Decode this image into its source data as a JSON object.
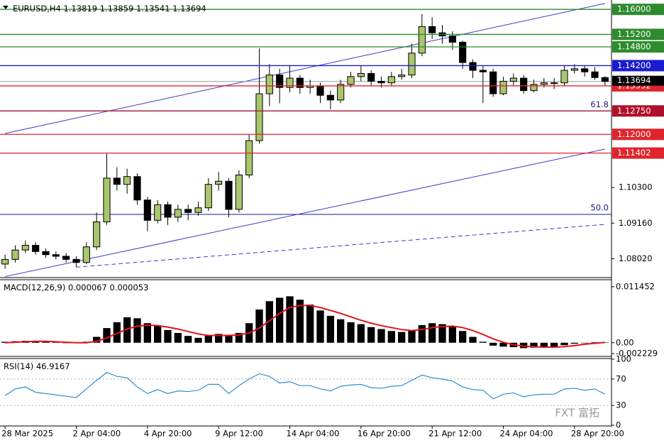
{
  "chart_data": [
    {
      "type": "candlestick",
      "symbol": "EURUSD,H4",
      "categories": [
        "28 Mar 2025",
        null,
        null,
        null,
        null,
        null,
        null,
        "2 Apr 04:00",
        null,
        null,
        null,
        null,
        null,
        null,
        "4 Apr 20:00",
        null,
        null,
        null,
        null,
        null,
        null,
        "9 Apr 12:00",
        null,
        null,
        null,
        null,
        null,
        null,
        "14 Apr 04:00",
        null,
        null,
        null,
        null,
        null,
        null,
        "16 Apr 20:00",
        null,
        null,
        null,
        null,
        null,
        null,
        "21 Apr 12:00",
        null,
        null,
        null,
        null,
        null,
        null,
        "24 Apr 04:00",
        null,
        null,
        null,
        null,
        null,
        null,
        "28 Apr 20:00",
        null,
        null,
        null
      ],
      "open": [
        1.0785,
        1.08,
        1.083,
        1.0845,
        1.0825,
        1.0815,
        1.081,
        1.08,
        1.079,
        1.084,
        1.092,
        1.106,
        1.104,
        1.1065,
        1.099,
        1.0925,
        1.0975,
        1.0935,
        1.096,
        1.095,
        1.0965,
        1.104,
        1.105,
        1.096,
        1.107,
        1.118,
        1.133,
        1.139,
        1.135,
        1.138,
        1.135,
        1.1355,
        1.1325,
        1.131,
        1.136,
        1.1385,
        1.1395,
        1.137,
        1.1365,
        1.1385,
        1.139,
        1.146,
        1.1545,
        1.1525,
        1.1515,
        1.1495,
        1.143,
        1.1405,
        1.14,
        1.133,
        1.137,
        1.138,
        1.134,
        1.136,
        1.1365,
        1.1365,
        1.1405,
        1.141,
        1.14,
        1.13819
      ],
      "high": [
        1.0815,
        1.0845,
        1.086,
        1.0855,
        1.0835,
        1.0825,
        1.082,
        1.081,
        1.0855,
        1.095,
        1.114,
        1.1095,
        1.109,
        1.1075,
        1.1,
        1.099,
        1.0985,
        1.0975,
        1.0975,
        1.0985,
        1.106,
        1.108,
        1.106,
        1.1085,
        1.12,
        1.1475,
        1.1425,
        1.141,
        1.142,
        1.139,
        1.1375,
        1.1365,
        1.134,
        1.1375,
        1.14,
        1.142,
        1.1405,
        1.1385,
        1.14,
        1.141,
        1.149,
        1.1585,
        1.1575,
        1.155,
        1.153,
        1.15,
        1.144,
        1.142,
        1.141,
        1.1385,
        1.1395,
        1.139,
        1.1375,
        1.138,
        1.138,
        1.142,
        1.1425,
        1.142,
        1.1415,
        1.13859
      ],
      "low": [
        1.077,
        1.079,
        1.082,
        1.0815,
        1.0805,
        1.08,
        1.079,
        1.0775,
        1.0785,
        1.083,
        1.091,
        1.102,
        1.101,
        1.0975,
        1.089,
        1.0915,
        1.091,
        1.092,
        1.0925,
        1.094,
        1.0955,
        1.102,
        1.0935,
        1.095,
        1.106,
        1.117,
        1.129,
        1.13,
        1.1335,
        1.133,
        1.133,
        1.13,
        1.128,
        1.13,
        1.135,
        1.137,
        1.1355,
        1.135,
        1.1355,
        1.1375,
        1.138,
        1.145,
        1.1505,
        1.149,
        1.147,
        1.141,
        1.138,
        1.13,
        1.132,
        1.1325,
        1.1355,
        1.133,
        1.1335,
        1.135,
        1.1345,
        1.1355,
        1.1395,
        1.1385,
        1.1375,
        1.13541
      ],
      "close": [
        1.08,
        1.083,
        1.0845,
        1.0825,
        1.0815,
        1.081,
        1.08,
        1.079,
        1.084,
        1.092,
        1.106,
        1.104,
        1.1065,
        1.099,
        1.0925,
        1.0975,
        1.0935,
        1.096,
        1.095,
        1.0965,
        1.104,
        1.105,
        1.096,
        1.107,
        1.118,
        1.133,
        1.139,
        1.135,
        1.138,
        1.135,
        1.1355,
        1.1325,
        1.131,
        1.136,
        1.1385,
        1.1395,
        1.137,
        1.1365,
        1.1385,
        1.139,
        1.146,
        1.1545,
        1.1525,
        1.1515,
        1.1495,
        1.143,
        1.1405,
        1.14,
        1.133,
        1.137,
        1.138,
        1.134,
        1.136,
        1.1365,
        1.1365,
        1.1405,
        1.141,
        1.14,
        1.13819,
        1.13694
      ],
      "up_color": "#a8c66c",
      "down_color": "#000000",
      "current_color": "#000000",
      "ylim": [
        1.0744,
        1.163
      ],
      "yticks": [
        {
          "value": 1.103,
          "label": "1.10300"
        },
        {
          "value": 1.0916,
          "label": "1.09160"
        },
        {
          "value": 1.0802,
          "label": "1.08020"
        }
      ],
      "levels": [
        {
          "value": 1.16,
          "label": "1.16000",
          "color": "#2e8b2e"
        },
        {
          "value": 1.152,
          "label": "1.15200",
          "color": "#2e8b2e"
        },
        {
          "value": 1.148,
          "label": "1.14800",
          "color": "#2e8b2e"
        },
        {
          "value": 1.142,
          "label": "1.14200",
          "color": "#1a1ad0"
        },
        {
          "value": 1.13552,
          "color": "#e0242c"
        },
        {
          "value": 1.1275,
          "label": "1.12750",
          "color": "#b0102a"
        },
        {
          "value": 1.12,
          "label": "1.12000",
          "color": "#e0242c"
        },
        {
          "value": 1.11402,
          "color": "#e0242c"
        }
      ],
      "fib_levels": [
        {
          "level": "61.8",
          "price": 1.1275
        },
        {
          "level": "50.0",
          "price": 1.0944
        }
      ],
      "fib_color": "#1a1a8c",
      "trendlines": [
        {
          "from": 0,
          "to": 59,
          "start": 1.1203,
          "end": 1.1619,
          "dashed": false
        },
        {
          "from": 0,
          "to": 59,
          "start": 1.0745,
          "end": 1.1153,
          "dashed": false
        },
        {
          "from": 7,
          "to": 59,
          "start": 1.0775,
          "end": 1.0912,
          "dashed": true
        }
      ],
      "trend_color": "#3a3acd",
      "watermark": "FXT 富拓"
    },
    {
      "type": "macd",
      "name": "MACD(12,26,9)",
      "values": [
        0.0002,
        0.0003,
        0.0004,
        0.0003,
        0.0002,
        0.0001,
        0.0,
        -0.0001,
        0.0002,
        0.0012,
        0.003,
        0.0042,
        0.0052,
        0.005,
        0.004,
        0.0034,
        0.0026,
        0.002,
        0.0014,
        0.001,
        0.0014,
        0.0018,
        0.0014,
        0.002,
        0.004,
        0.0068,
        0.0085,
        0.0092,
        0.0095,
        0.0088,
        0.0078,
        0.0066,
        0.0055,
        0.0048,
        0.0042,
        0.0038,
        0.0032,
        0.0028,
        0.0024,
        0.0022,
        0.0026,
        0.0036,
        0.004,
        0.0038,
        0.0034,
        0.0024,
        0.0012,
        0.0002,
        -0.0006,
        -0.0008,
        -0.0009,
        -0.0011,
        -0.001,
        -0.001,
        -0.0009,
        -0.0005,
        -0.0002,
        0.0,
        0.0001,
        6.7e-05
      ],
      "signal": [
        0.0,
        0.0001,
        0.0002,
        0.0003,
        0.0003,
        0.0002,
        0.0001,
        0.0,
        0.0,
        0.0003,
        0.001,
        0.0019,
        0.0028,
        0.0034,
        0.0036,
        0.0035,
        0.0032,
        0.0028,
        0.0023,
        0.0018,
        0.0015,
        0.0015,
        0.0015,
        0.0016,
        0.002,
        0.003,
        0.0045,
        0.006,
        0.0072,
        0.0076,
        0.0076,
        0.0072,
        0.0066,
        0.006,
        0.0053,
        0.0046,
        0.004,
        0.0035,
        0.0031,
        0.0027,
        0.0025,
        0.0027,
        0.0031,
        0.0033,
        0.0034,
        0.0031,
        0.0025,
        0.0017,
        0.0008,
        0.0001,
        -0.0004,
        -0.0007,
        -0.0008,
        -0.0009,
        -0.0009,
        -0.0008,
        -0.0006,
        -0.0003,
        -0.0001,
        5.3e-05
      ],
      "color": "#000000",
      "signal_color": "#e0141c",
      "ylim": [
        -0.0025,
        0.0126
      ],
      "yticks": [
        0.011452,
        {
          "value": 0,
          "label": "0.00"
        },
        -0.002229
      ]
    },
    {
      "type": "line",
      "name": "RSI(14)",
      "values": [
        45,
        55,
        58,
        50,
        48,
        46,
        44,
        42,
        55,
        68,
        80,
        74,
        72,
        58,
        48,
        54,
        48,
        52,
        51,
        53,
        62,
        62,
        48,
        60,
        70,
        78,
        74,
        64,
        66,
        60,
        60,
        55,
        52,
        59,
        61,
        62,
        57,
        56,
        59,
        60,
        68,
        76,
        72,
        70,
        67,
        58,
        54,
        53,
        40,
        47,
        49,
        43,
        46,
        47,
        47,
        55,
        56,
        53,
        55,
        46.9167
      ],
      "color": "#2b8fd6",
      "ylim": [
        0,
        100
      ],
      "yticks": [
        100,
        70,
        30,
        0
      ]
    }
  ]
}
